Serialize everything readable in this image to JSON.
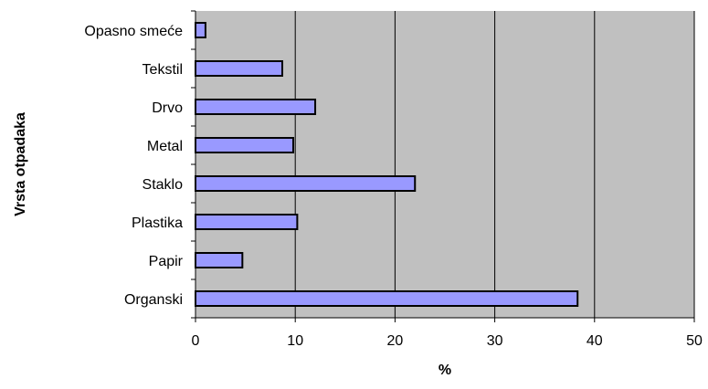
{
  "chart_data": {
    "type": "bar",
    "orientation": "horizontal",
    "categories": [
      "Opasno smeće",
      "Tekstil",
      "Drvo",
      "Metal",
      "Staklo",
      "Plastika",
      "Papir",
      "Organski"
    ],
    "values": [
      1.0,
      8.7,
      12.0,
      9.8,
      22.0,
      10.2,
      4.7,
      38.3
    ],
    "xlabel": "%",
    "ylabel": "Vrsta otpadaka",
    "xlim": [
      0,
      50
    ],
    "xticks": [
      "0",
      "10",
      "20",
      "30",
      "40",
      "50"
    ],
    "grid": "vertical",
    "legend": "none",
    "colors": {
      "bar_fill": "#9999ff",
      "bar_stroke": "#000000",
      "plot_background": "#c0c0c0",
      "gridline": "#000000"
    }
  }
}
